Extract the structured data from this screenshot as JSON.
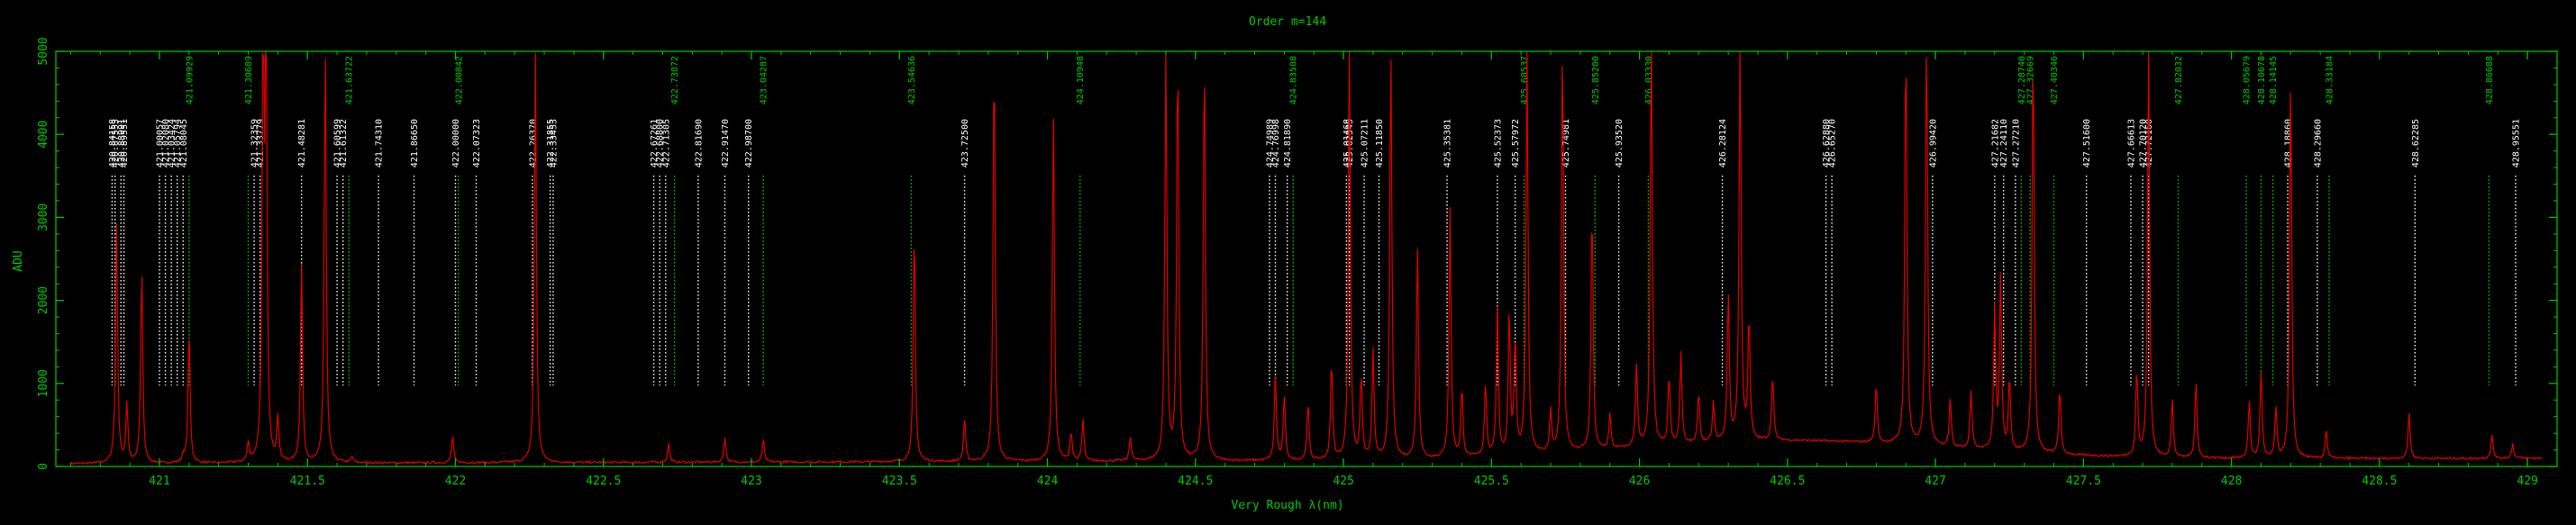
{
  "chart_data": {
    "type": "line",
    "title": "Order m=144",
    "xlabel": "Very Rough λ(nm)",
    "ylabel": "ADU",
    "xlim": [
      420.65,
      429.1
    ],
    "ylim": [
      0,
      5000
    ],
    "x_ticks": [
      421,
      421.5,
      422,
      422.5,
      423,
      423.5,
      424,
      424.5,
      425,
      425.5,
      426,
      426.5,
      427,
      427.5,
      428,
      428.5,
      429
    ],
    "x_tick_labels": [
      "421",
      "421.5",
      "422",
      "422.5",
      "423",
      "423.5",
      "424",
      "424.5",
      "425",
      "425.5",
      "426",
      "426.5",
      "427",
      "427.5",
      "428",
      "428.5",
      "429"
    ],
    "y_ticks": [
      0,
      1000,
      2000,
      3000,
      4000,
      5000
    ],
    "y_tick_labels": [
      "0",
      "1000",
      "2000",
      "3000",
      "4000",
      "5000"
    ],
    "colors": {
      "frame": "#00cc00",
      "spectrum": "#e00000",
      "white_marker": "#ffffff",
      "green_marker": "#00cc00",
      "background": "#000000"
    },
    "baseline": {
      "base": 20,
      "slope_per_nm": 8,
      "hump_center": 426.5,
      "hump_height": 230,
      "hump_sigma": 0.55,
      "noise": 25
    },
    "peaks": [
      [
        420.855,
        3000
      ],
      [
        420.89,
        720
      ],
      [
        420.94,
        2350
      ],
      [
        421.08,
        90
      ],
      [
        421.1,
        1650
      ],
      [
        421.3,
        230
      ],
      [
        421.35,
        4800
      ],
      [
        421.36,
        5000
      ],
      [
        421.4,
        520
      ],
      [
        421.48,
        2400
      ],
      [
        421.56,
        5000
      ],
      [
        421.65,
        70
      ],
      [
        421.99,
        330
      ],
      [
        422.27,
        5000
      ],
      [
        422.72,
        230
      ],
      [
        422.91,
        310
      ],
      [
        423.04,
        280
      ],
      [
        423.55,
        2850
      ],
      [
        423.72,
        530
      ],
      [
        423.82,
        5000
      ],
      [
        424.02,
        4250
      ],
      [
        424.08,
        350
      ],
      [
        424.12,
        500
      ],
      [
        424.28,
        300
      ],
      [
        424.4,
        5000
      ],
      [
        424.44,
        5000
      ],
      [
        424.53,
        5000
      ],
      [
        424.77,
        1050
      ],
      [
        424.8,
        800
      ],
      [
        424.88,
        700
      ],
      [
        424.96,
        1200
      ],
      [
        425.02,
        5000
      ],
      [
        425.06,
        1000
      ],
      [
        425.1,
        1300
      ],
      [
        425.16,
        5000
      ],
      [
        425.25,
        2600
      ],
      [
        425.36,
        3000
      ],
      [
        425.4,
        840
      ],
      [
        425.48,
        900
      ],
      [
        425.52,
        1800
      ],
      [
        425.56,
        1700
      ],
      [
        425.58,
        1400
      ],
      [
        425.62,
        5000
      ],
      [
        425.7,
        500
      ],
      [
        425.74,
        5000
      ],
      [
        425.84,
        3000
      ],
      [
        425.9,
        420
      ],
      [
        425.99,
        1000
      ],
      [
        426.04,
        5000
      ],
      [
        426.1,
        830
      ],
      [
        426.14,
        1100
      ],
      [
        426.2,
        600
      ],
      [
        426.25,
        480
      ],
      [
        426.3,
        1800
      ],
      [
        426.34,
        5000
      ],
      [
        426.37,
        1500
      ],
      [
        426.45,
        800
      ],
      [
        426.8,
        720
      ],
      [
        426.9,
        5000
      ],
      [
        426.97,
        5000
      ],
      [
        427.05,
        600
      ],
      [
        427.12,
        700
      ],
      [
        427.2,
        1700
      ],
      [
        427.22,
        2100
      ],
      [
        427.25,
        900
      ],
      [
        427.33,
        5000
      ],
      [
        427.42,
        800
      ],
      [
        427.68,
        1050
      ],
      [
        427.72,
        5000
      ],
      [
        427.8,
        700
      ],
      [
        427.88,
        950
      ],
      [
        428.06,
        700
      ],
      [
        428.1,
        1050
      ],
      [
        428.15,
        600
      ],
      [
        428.2,
        4700
      ],
      [
        428.32,
        350
      ],
      [
        428.6,
        550
      ],
      [
        428.88,
        280
      ],
      [
        428.95,
        180
      ]
    ],
    "markers": [
      {
        "label": "420.84158",
        "x": 420.84,
        "color": "white"
      },
      {
        "label": "420.87553",
        "x": 420.85,
        "color": "white"
      },
      {
        "label": "420.88991",
        "x": 420.87,
        "color": "white"
      },
      {
        "label": "420.89551",
        "x": 420.88,
        "color": "white"
      },
      {
        "label": "421.00057",
        "x": 421.0,
        "color": "white"
      },
      {
        "label": "421.02080",
        "x": 421.02,
        "color": "white"
      },
      {
        "label": "421.03424",
        "x": 421.04,
        "color": "white"
      },
      {
        "label": "421.05794",
        "x": 421.06,
        "color": "white"
      },
      {
        "label": "421.08045",
        "x": 421.08,
        "color": "white"
      },
      {
        "label": "421.09929",
        "x": 421.1,
        "color": "green"
      },
      {
        "label": "421.30689",
        "x": 421.3,
        "color": "green"
      },
      {
        "label": "421.32359",
        "x": 421.32,
        "color": "white"
      },
      {
        "label": "421.33779",
        "x": 421.34,
        "color": "white"
      },
      {
        "label": "421.48281",
        "x": 421.48,
        "color": "white"
      },
      {
        "label": "421.60599",
        "x": 421.6,
        "color": "white"
      },
      {
        "label": "421.61322",
        "x": 421.62,
        "color": "white"
      },
      {
        "label": "421.63722",
        "x": 421.64,
        "color": "green"
      },
      {
        "label": "421.74310",
        "x": 421.74,
        "color": "white"
      },
      {
        "label": "421.86650",
        "x": 421.86,
        "color": "white"
      },
      {
        "label": "422.00000",
        "x": 422.0,
        "color": "white"
      },
      {
        "label": "422.00842",
        "x": 422.01,
        "color": "green"
      },
      {
        "label": "422.07323",
        "x": 422.07,
        "color": "white"
      },
      {
        "label": "422.26370",
        "x": 422.26,
        "color": "white"
      },
      {
        "label": "422.31855",
        "x": 422.32,
        "color": "white"
      },
      {
        "label": "422.33453",
        "x": 422.33,
        "color": "white"
      },
      {
        "label": "422.67261",
        "x": 422.67,
        "color": "white"
      },
      {
        "label": "422.68800",
        "x": 422.69,
        "color": "white"
      },
      {
        "label": "422.71305",
        "x": 422.71,
        "color": "white"
      },
      {
        "label": "422.73872",
        "x": 422.74,
        "color": "green"
      },
      {
        "label": "422.81690",
        "x": 422.82,
        "color": "white"
      },
      {
        "label": "422.91470",
        "x": 422.91,
        "color": "white"
      },
      {
        "label": "422.98700",
        "x": 422.99,
        "color": "white"
      },
      {
        "label": "423.04287",
        "x": 423.04,
        "color": "green"
      },
      {
        "label": "423.54636",
        "x": 423.54,
        "color": "green"
      },
      {
        "label": "423.72500",
        "x": 423.72,
        "color": "white"
      },
      {
        "label": "424.10948",
        "x": 424.11,
        "color": "green"
      },
      {
        "label": "424.74989",
        "x": 424.75,
        "color": "white"
      },
      {
        "label": "424.76998",
        "x": 424.77,
        "color": "white"
      },
      {
        "label": "424.81890",
        "x": 424.81,
        "color": "white"
      },
      {
        "label": "424.83508",
        "x": 424.83,
        "color": "green"
      },
      {
        "label": "425.01468",
        "x": 425.01,
        "color": "white"
      },
      {
        "label": "425.02345",
        "x": 425.02,
        "color": "white"
      },
      {
        "label": "425.07211",
        "x": 425.07,
        "color": "white"
      },
      {
        "label": "425.11850",
        "x": 425.12,
        "color": "white"
      },
      {
        "label": "425.35381",
        "x": 425.35,
        "color": "white"
      },
      {
        "label": "425.52373",
        "x": 425.52,
        "color": "white"
      },
      {
        "label": "425.57972",
        "x": 425.58,
        "color": "white"
      },
      {
        "label": "425.60537",
        "x": 425.61,
        "color": "green"
      },
      {
        "label": "425.74981",
        "x": 425.75,
        "color": "white"
      },
      {
        "label": "425.85200",
        "x": 425.85,
        "color": "green"
      },
      {
        "label": "425.93520",
        "x": 425.93,
        "color": "white"
      },
      {
        "label": "426.03330",
        "x": 426.03,
        "color": "green"
      },
      {
        "label": "426.28124",
        "x": 426.28,
        "color": "white"
      },
      {
        "label": "426.62880",
        "x": 426.63,
        "color": "white"
      },
      {
        "label": "426.65270",
        "x": 426.65,
        "color": "white"
      },
      {
        "label": "426.99420",
        "x": 426.99,
        "color": "white"
      },
      {
        "label": "427.21682",
        "x": 427.2,
        "color": "white"
      },
      {
        "label": "427.24110",
        "x": 427.23,
        "color": "white"
      },
      {
        "label": "427.27210",
        "x": 427.27,
        "color": "white"
      },
      {
        "label": "427.28740",
        "x": 427.29,
        "color": "green"
      },
      {
        "label": "427.32669",
        "x": 427.32,
        "color": "green"
      },
      {
        "label": "427.40346",
        "x": 427.4,
        "color": "green"
      },
      {
        "label": "427.51600",
        "x": 427.51,
        "color": "white"
      },
      {
        "label": "427.66613",
        "x": 427.66,
        "color": "white"
      },
      {
        "label": "427.70120",
        "x": 427.7,
        "color": "white"
      },
      {
        "label": "427.72160",
        "x": 427.72,
        "color": "white"
      },
      {
        "label": "427.82032",
        "x": 427.82,
        "color": "green"
      },
      {
        "label": "428.05679",
        "x": 428.05,
        "color": "green"
      },
      {
        "label": "428.10678",
        "x": 428.1,
        "color": "green"
      },
      {
        "label": "428.14145",
        "x": 428.14,
        "color": "green"
      },
      {
        "label": "428.18860",
        "x": 428.19,
        "color": "white"
      },
      {
        "label": "428.29660",
        "x": 428.29,
        "color": "white"
      },
      {
        "label": "428.33184",
        "x": 428.33,
        "color": "green"
      },
      {
        "label": "428.62285",
        "x": 428.62,
        "color": "white"
      },
      {
        "label": "428.86688",
        "x": 428.87,
        "color": "green"
      },
      {
        "label": "428.95551",
        "x": 428.96,
        "color": "white"
      }
    ]
  }
}
